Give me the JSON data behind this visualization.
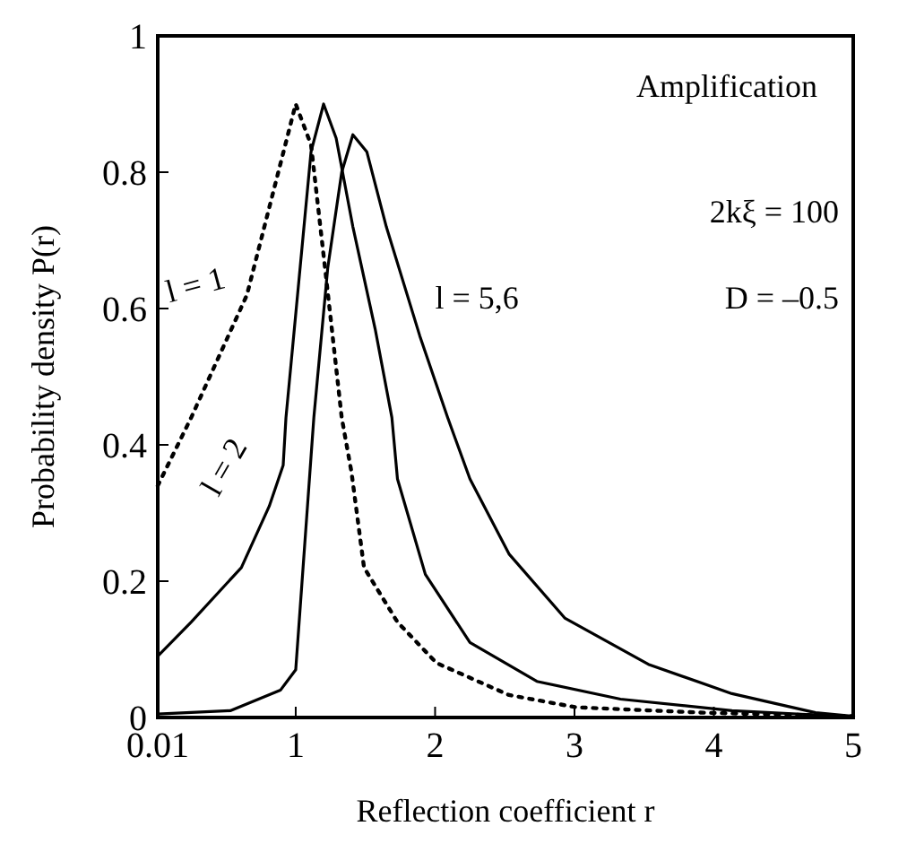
{
  "chart_data": {
    "type": "line",
    "xlabel": "Reflection coefficient r",
    "ylabel": "Probability density P(r)",
    "xlim": [
      0.01,
      5
    ],
    "xticks": [
      0.01,
      1,
      2,
      3,
      4,
      5
    ],
    "ylim": [
      0,
      1
    ],
    "yticks": [
      0,
      0.2,
      0.4,
      0.6,
      0.8,
      1
    ],
    "grid": false,
    "series": [
      {
        "color": "#000000",
        "line_style": "dotted",
        "x": [
          0.01,
          0.25,
          0.65,
          1.0,
          1.11,
          1.21,
          1.33,
          1.4,
          1.49,
          1.73,
          2.01,
          2.53,
          3.01,
          3.93,
          5
        ],
        "values": [
          0.34,
          0.44,
          0.62,
          0.9,
          0.84,
          0.66,
          0.44,
          0.36,
          0.22,
          0.14,
          0.08,
          0.033,
          0.015,
          0.007,
          0.002
        ]
      },
      {
        "color": "#000000",
        "line_style": "solid",
        "x": [
          0.01,
          0.25,
          0.61,
          0.81,
          0.91,
          0.93,
          0.99,
          1.11,
          1.2,
          1.29,
          1.41,
          1.57,
          1.69,
          1.73,
          1.93,
          2.25,
          2.73,
          3.33,
          4.13,
          5
        ],
        "values": [
          0.09,
          0.14,
          0.22,
          0.31,
          0.37,
          0.44,
          0.57,
          0.83,
          0.9,
          0.85,
          0.72,
          0.57,
          0.44,
          0.35,
          0.21,
          0.11,
          0.053,
          0.027,
          0.01,
          0.001
        ]
      },
      {
        "color": "#000000",
        "line_style": "solid",
        "x": [
          0.01,
          0.53,
          0.89,
          1.0,
          1.13,
          1.23,
          1.33,
          1.41,
          1.51,
          1.65,
          1.89,
          2.09,
          2.25,
          2.53,
          2.93,
          3.53,
          4.13,
          4.73,
          5
        ],
        "values": [
          0.005,
          0.01,
          0.04,
          0.07,
          0.44,
          0.66,
          0.8,
          0.855,
          0.83,
          0.72,
          0.56,
          0.44,
          0.35,
          0.24,
          0.146,
          0.078,
          0.035,
          0.007,
          0.002
        ]
      }
    ],
    "annotations": [
      "l = 1",
      "l = 2",
      "l = 5,6",
      "Amplification",
      "2kξ = 100",
      "D = –0.5"
    ]
  }
}
